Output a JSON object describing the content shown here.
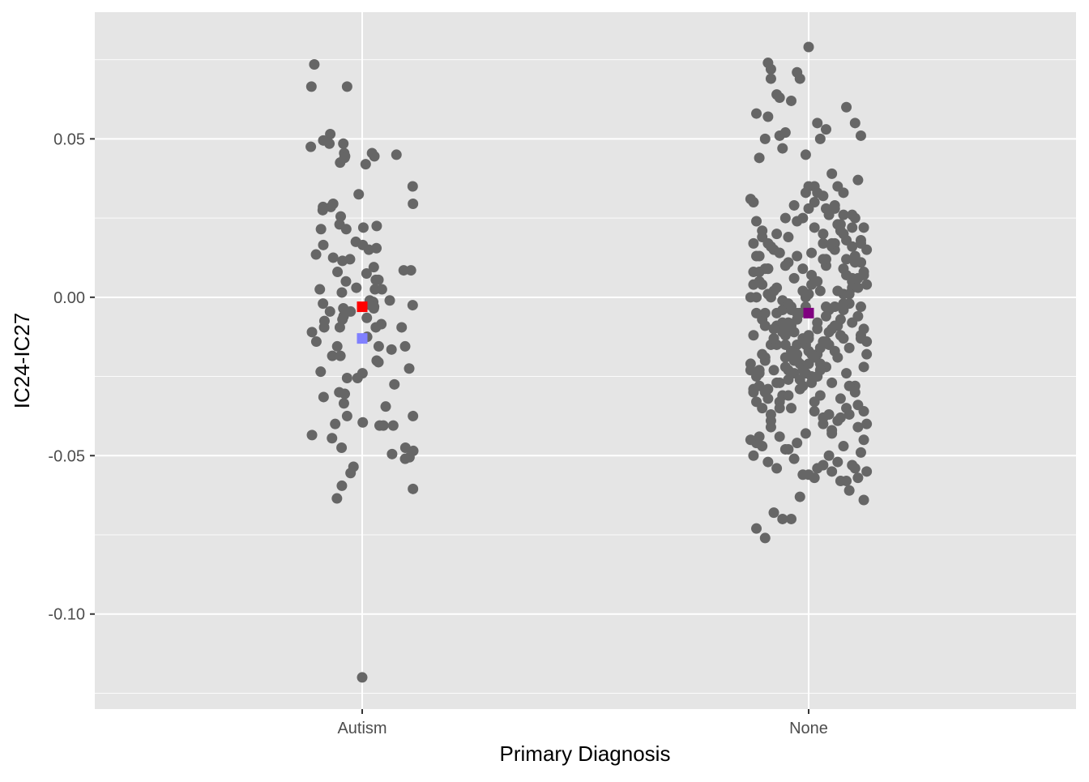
{
  "chart_data": {
    "type": "scatter",
    "title": "",
    "xlabel": "Primary Diagnosis",
    "ylabel": "IC24-IC27",
    "categories": [
      "Autism",
      "None"
    ],
    "ylim": [
      -0.13,
      0.09
    ],
    "y_ticks": [
      -0.1,
      -0.05,
      0.0,
      0.05
    ],
    "y_tick_labels": [
      "-0.10",
      "-0.05",
      "0.00",
      "0.05"
    ],
    "grid": true,
    "legend": "none",
    "colors": {
      "panel_background": "#e5e5e5",
      "grid": "#ffffff",
      "points": "#666666",
      "autism_mean_red": "#ff0000",
      "autism_mean_blue": "#8080ff",
      "none_mean": "#800080"
    },
    "series": [
      {
        "category": "Autism",
        "jitter": [
          -0.165,
          -0.175,
          -0.113,
          -0.135,
          -0.177,
          -0.108,
          -0.085,
          -0.065,
          -0.02,
          -0.016,
          -0.1,
          -0.068,
          -0.063,
          -0.158,
          -0.052,
          -0.093,
          -0.074,
          -0.042,
          -0.1,
          -0.052,
          -0.012,
          -0.11,
          -0.173,
          -0.03,
          -0.04,
          -0.07,
          -0.087,
          -0.059,
          -0.159,
          -0.052,
          -0.133,
          -0.071,
          -0.077,
          -0.068,
          -0.07,
          -0.065,
          -0.135,
          -0.103,
          -0.111,
          -0.131,
          -0.079,
          -0.062,
          -0.061,
          -0.056,
          -0.173,
          -0.076,
          -0.04,
          -0.086,
          -0.064,
          -0.06,
          -0.146,
          -0.075,
          -0.142,
          -0.136,
          -0.143,
          -0.134,
          -0.078,
          -0.104,
          -0.055,
          -0.134,
          -0.13,
          -0.022,
          0.047,
          0.174,
          0.175,
          0.168,
          0.038,
          0.012,
          0.056,
          0.044,
          0.026,
          0.004,
          0.095,
          0.04,
          0.068,
          0.015,
          0.041,
          0.04,
          0.002,
          0.174,
          0.042,
          0.023,
          0.05,
          0.017,
          0.028,
          0.057,
          0.047,
          0.101,
          0.016,
          0.034,
          0.143,
          0.056,
          0.081,
          0.06,
          0.176,
          0.163,
          0.175,
          0.002,
          0.175,
          0.148,
          0.001,
          0.066,
          0.05,
          0.118,
          0.136,
          0.049,
          0.148,
          0.162,
          0.111,
          0.149,
          0.103,
          0.107,
          0.073,
          0.0
        ],
        "y": [
          0.0735,
          0.0665,
          0.0485,
          0.0285,
          0.0475,
          0.0285,
          0.008,
          0.0485,
          0.003,
          -0.0255,
          0.0125,
          -0.007,
          -0.0335,
          -0.014,
          -0.0375,
          -0.04,
          0.0255,
          0.012,
          0.0295,
          0.0665,
          0.0325,
          0.0515,
          -0.0435,
          -0.0535,
          -0.0555,
          -0.0595,
          -0.0635,
          0.0445,
          0.0135,
          -0.0255,
          -0.0315,
          -0.0475,
          -0.0095,
          0.0115,
          0.0015,
          -0.0035,
          -0.002,
          -0.0185,
          -0.0045,
          -0.0095,
          -0.03,
          0.0455,
          0.044,
          0.005,
          -0.011,
          0.0425,
          -0.0045,
          -0.0155,
          -0.006,
          -0.0305,
          0.0025,
          -0.0185,
          0.0215,
          0.0275,
          -0.0235,
          0.0165,
          0.023,
          -0.0445,
          0.0215,
          0.0495,
          -0.0075,
          0.0175,
          0.0055,
          0.035,
          0.0295,
          0.0085,
          -0.0015,
          0.042,
          0.0055,
          0.0025,
          -0.001,
          0.022,
          -0.001,
          -0.0035,
          0.0025,
          0.0075,
          -0.003,
          0.0095,
          0.0165,
          -0.0025,
          0.0445,
          0.015,
          -0.02,
          -0.0125,
          -0.0025,
          -0.0155,
          -0.0095,
          -0.0165,
          -0.0065,
          0.0455,
          0.0085,
          -0.0205,
          -0.0345,
          -0.0405,
          -0.0485,
          -0.0505,
          -0.0605,
          -0.0395,
          -0.0375,
          -0.051,
          -0.024,
          -0.0085,
          0.0225,
          0.045,
          -0.0095,
          0.0155,
          -0.0155,
          -0.0225,
          -0.0275,
          -0.0475,
          -0.0495,
          -0.0405,
          -0.0405,
          -0.12
        ]
      },
      {
        "category": "None",
        "jitter": [
          -0.13,
          -0.14,
          -0.13,
          -0.11,
          -0.18,
          -0.15,
          -0.14,
          -0.17,
          -0.1,
          -0.08,
          -0.09,
          -0.1,
          -0.06,
          -0.04,
          -0.03,
          -0.01,
          0.0,
          0.02,
          0.04,
          0.03,
          0.06,
          0.08,
          0.1,
          0.13,
          0.16,
          0.18,
          0.17,
          0.15,
          0.12,
          0.09,
          0.07,
          0.05,
          0.01,
          -0.02,
          -0.05,
          -0.07,
          -0.12,
          -0.16,
          -0.19,
          -0.2,
          -0.18,
          -0.16,
          -0.13,
          -0.1,
          -0.08,
          -0.04,
          -0.02,
          0.02,
          0.05,
          0.08,
          0.11,
          0.13,
          0.16,
          0.19,
          0.2,
          0.18,
          0.15,
          0.12,
          0.09,
          0.06,
          0.03,
          0.0,
          -0.03,
          -0.06,
          -0.09,
          -0.12,
          -0.15,
          -0.18,
          -0.19,
          -0.17,
          -0.14,
          -0.11,
          -0.07,
          -0.05,
          -0.01,
          0.01,
          0.04,
          0.07,
          0.1,
          0.12,
          0.15,
          0.17,
          0.19,
          0.2,
          0.18,
          0.14,
          0.11,
          0.08,
          0.06,
          0.03,
          -0.02,
          -0.04,
          -0.08,
          -0.11,
          -0.13,
          -0.16,
          -0.19,
          -0.2,
          -0.17,
          -0.15,
          -0.12,
          -0.09,
          -0.06,
          -0.03,
          0.0,
          0.03,
          0.06,
          0.09,
          0.12,
          0.15,
          0.18,
          0.2,
          0.19,
          0.16,
          0.13,
          0.1,
          0.07,
          0.04,
          0.01,
          -0.02,
          -0.05,
          -0.08,
          -0.11,
          -0.14,
          -0.17,
          -0.19,
          -0.18,
          -0.15,
          -0.12,
          -0.09,
          -0.06,
          -0.03,
          0.01,
          0.04,
          0.07,
          0.1,
          0.13,
          0.16,
          0.19,
          0.2,
          0.17,
          0.14,
          0.11,
          0.08,
          0.05,
          0.02,
          -0.01,
          -0.04,
          -0.07,
          -0.1,
          -0.13,
          -0.16,
          -0.19,
          -0.18,
          -0.14,
          -0.11,
          -0.08,
          -0.05,
          -0.02,
          0.02,
          0.05,
          0.08,
          0.11,
          0.14,
          0.17,
          0.2,
          0.19,
          0.16,
          0.13,
          0.1,
          0.07,
          0.03,
          0.0,
          -0.03,
          -0.06,
          -0.09,
          -0.12,
          -0.15,
          -0.18,
          -0.2,
          -0.17,
          -0.13,
          -0.1,
          -0.07,
          -0.04,
          -0.01,
          0.03,
          0.06,
          0.09,
          0.12,
          0.15,
          0.18,
          0.2,
          0.18,
          0.15,
          0.12,
          0.09,
          0.05,
          0.02,
          -0.01,
          -0.05,
          -0.08,
          -0.11,
          -0.14,
          -0.17,
          -0.19,
          -0.16,
          -0.13,
          -0.09,
          -0.06,
          -0.02,
          0.01,
          0.04,
          0.08,
          0.11,
          0.14,
          0.17,
          0.19,
          0.18,
          0.15,
          0.12,
          0.08,
          0.05,
          0.02,
          -0.02,
          -0.05,
          -0.08,
          -0.12,
          -0.15,
          -0.18,
          -0.2,
          -0.17,
          -0.14,
          -0.1,
          -0.07,
          -0.04,
          0.0,
          0.03,
          0.06,
          0.1,
          0.13,
          0.16,
          0.19,
          0.17,
          0.14,
          0.11,
          0.07,
          0.04,
          0.0,
          -0.03,
          -0.07,
          -0.1,
          -0.13,
          -0.16,
          -0.19,
          -0.18,
          -0.15,
          -0.11,
          -0.08,
          -0.04,
          -0.01,
          0.02,
          0.06,
          0.09,
          0.12,
          0.16,
          0.19,
          0.18,
          0.16,
          0.13,
          0.1,
          0.06,
          0.03,
          0.0,
          -0.04,
          -0.07,
          -0.1,
          -0.14,
          -0.17,
          -0.2,
          -0.16,
          -0.12,
          -0.09,
          -0.06,
          -0.02,
          0.01,
          0.05,
          0.08,
          0.11,
          0.15,
          0.18,
          0.17,
          0.14,
          0.12,
          0.09,
          0.05,
          0.02,
          -0.01,
          -0.05,
          -0.08,
          -0.12,
          -0.15,
          -0.18,
          -0.19,
          -0.14,
          -0.11,
          -0.07,
          -0.04
        ],
        "y": [
          0.072,
          0.074,
          0.069,
          0.064,
          0.058,
          0.05,
          0.057,
          0.044,
          0.051,
          0.052,
          0.047,
          0.063,
          0.062,
          0.071,
          0.069,
          0.045,
          0.035,
          0.03,
          0.05,
          0.055,
          0.053,
          0.039,
          0.035,
          0.06,
          0.055,
          0.051,
          0.037,
          0.026,
          0.033,
          0.028,
          0.026,
          0.02,
          0.014,
          0.009,
          0.006,
          0.011,
          0.015,
          0.019,
          0.03,
          0.031,
          0.024,
          0.021,
          0.016,
          0.014,
          0.01,
          0.013,
          0.025,
          0.022,
          0.017,
          0.016,
          0.023,
          0.012,
          0.011,
          0.007,
          0.004,
          -0.003,
          0.005,
          0.009,
          0.017,
          0.012,
          0.005,
          0.001,
          -0.005,
          -0.004,
          -0.001,
          0.002,
          0.009,
          0.013,
          0.017,
          0.008,
          0.001,
          -0.005,
          -0.008,
          -0.011,
          -0.003,
          0.004,
          0.002,
          -0.004,
          -0.009,
          -0.002,
          0.003,
          -0.006,
          -0.01,
          -0.014,
          -0.013,
          -0.016,
          -0.012,
          -0.01,
          -0.014,
          -0.018,
          -0.022,
          -0.015,
          -0.012,
          -0.009,
          -0.015,
          -0.007,
          -0.012,
          -0.021,
          -0.024,
          -0.019,
          -0.014,
          -0.011,
          -0.017,
          -0.021,
          -0.017,
          -0.025,
          -0.022,
          -0.017,
          -0.013,
          -0.008,
          -0.012,
          -0.018,
          -0.022,
          -0.028,
          -0.024,
          -0.019,
          -0.015,
          -0.021,
          -0.027,
          -0.023,
          -0.018,
          -0.022,
          -0.027,
          -0.029,
          -0.023,
          -0.029,
          -0.033,
          -0.03,
          -0.023,
          -0.031,
          -0.035,
          -0.029,
          -0.025,
          -0.031,
          -0.037,
          -0.039,
          -0.035,
          -0.03,
          -0.036,
          -0.04,
          -0.034,
          -0.028,
          -0.038,
          -0.042,
          -0.04,
          -0.036,
          -0.043,
          -0.046,
          -0.048,
          -0.044,
          -0.041,
          -0.047,
          -0.05,
          -0.046,
          -0.052,
          -0.054,
          -0.048,
          -0.051,
          -0.056,
          -0.057,
          -0.053,
          -0.055,
          -0.058,
          -0.061,
          -0.057,
          -0.055,
          -0.064,
          -0.054,
          -0.058,
          -0.052,
          -0.05,
          -0.054,
          -0.056,
          -0.063,
          -0.07,
          -0.07,
          -0.068,
          -0.076,
          -0.073,
          -0.045,
          -0.044,
          -0.037,
          -0.033,
          -0.026,
          -0.02,
          -0.015,
          -0.01,
          -0.006,
          -0.003,
          0.001,
          0.006,
          0.011,
          0.015,
          0.018,
          0.022,
          0.026,
          0.029,
          0.032,
          0.035,
          0.033,
          0.029,
          0.025,
          0.02,
          0.017,
          0.013,
          0.008,
          0.004,
          0.0,
          -0.004,
          -0.009,
          -0.013,
          -0.018,
          -0.023,
          -0.027,
          -0.032,
          -0.037,
          -0.041,
          -0.045,
          -0.049,
          -0.053,
          -0.047,
          -0.043,
          -0.038,
          -0.033,
          -0.028,
          -0.024,
          -0.019,
          -0.014,
          -0.009,
          -0.005,
          0.0,
          0.005,
          0.009,
          0.014,
          0.019,
          0.024,
          0.028,
          0.033,
          0.028,
          0.023,
          0.018,
          0.013,
          0.008,
          0.003,
          -0.002,
          -0.007,
          -0.011,
          -0.016,
          -0.021,
          -0.026,
          -0.031,
          -0.035,
          -0.039,
          -0.035,
          -0.03,
          -0.025,
          -0.02,
          -0.015,
          -0.01,
          -0.005,
          0.0,
          0.005,
          0.01,
          0.015,
          0.02,
          0.025,
          0.022,
          0.017,
          0.012,
          0.007,
          0.002,
          -0.003,
          -0.008,
          -0.013,
          -0.018,
          -0.023,
          -0.027,
          -0.032,
          -0.028,
          -0.023,
          -0.018,
          -0.013,
          -0.008,
          -0.003,
          0.002,
          0.007,
          0.012,
          0.017,
          0.021,
          0.016,
          0.011,
          0.006,
          0.001,
          -0.004,
          -0.009,
          -0.014,
          -0.019,
          -0.024,
          -0.02,
          -0.015,
          -0.01,
          -0.005,
          0.0,
          0.004,
          0.009,
          0.003,
          -0.002,
          -0.007,
          -0.012,
          0.079
        ]
      }
    ],
    "mean_markers": [
      {
        "category": "Autism",
        "y": -0.003,
        "color": "#ff0000"
      },
      {
        "category": "Autism",
        "y": -0.013,
        "color": "#8080ff"
      },
      {
        "category": "None",
        "y": -0.005,
        "color": "#800080"
      }
    ]
  }
}
